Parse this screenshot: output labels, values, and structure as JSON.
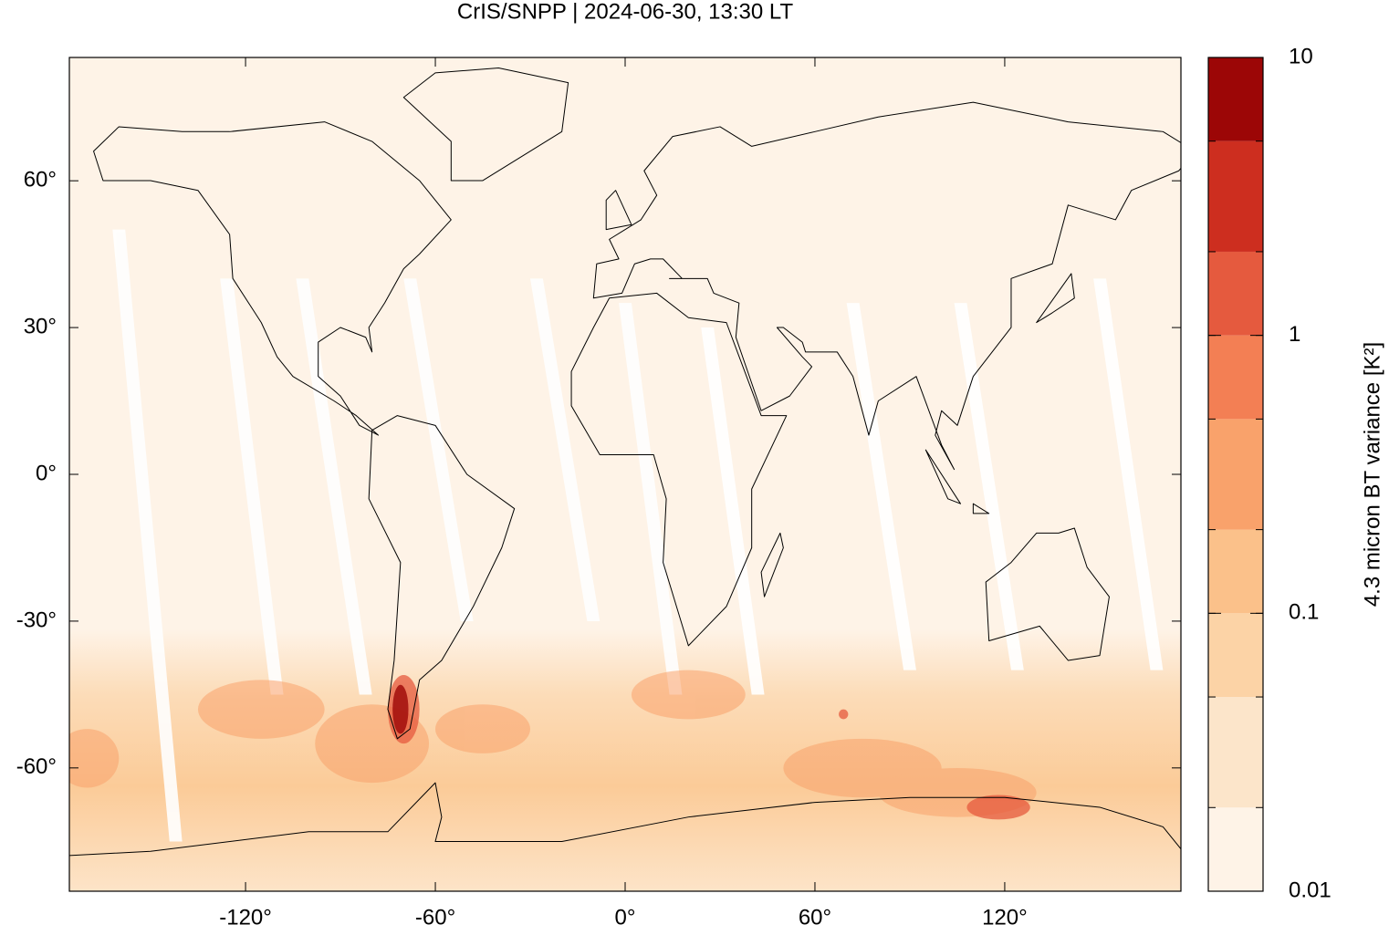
{
  "chart_data": {
    "type": "map",
    "title": "CrIS/SNPP | 2024-06-30, 13:30 LT",
    "xlim": [
      -175.7,
      175.7
    ],
    "ylim": [
      -85.2,
      85.2
    ],
    "xticks": [
      {
        "value": -120,
        "label": "-120°"
      },
      {
        "value": -60,
        "label": "-60°"
      },
      {
        "value": 0,
        "label": "0°"
      },
      {
        "value": 60,
        "label": "60°"
      },
      {
        "value": 120,
        "label": "120°"
      }
    ],
    "yticks": [
      {
        "value": -60,
        "label": "-60°"
      },
      {
        "value": -30,
        "label": "-30°"
      },
      {
        "value": 0,
        "label": "0°"
      },
      {
        "value": 30,
        "label": "30°"
      },
      {
        "value": 60,
        "label": "60°"
      }
    ],
    "colorbar": {
      "label": "4.3 micron BT variance [K²]",
      "scale": "log",
      "lim": [
        0.01,
        10
      ],
      "ticks": [
        0.01,
        0.1,
        1,
        10
      ],
      "levels": [
        0.01,
        0.02,
        0.05,
        0.1,
        0.2,
        0.5,
        1,
        2,
        5,
        10
      ],
      "colors": [
        "#fef3e7",
        "#fce5ca",
        "#fcd3a6",
        "#fbc18a",
        "#f9a26b",
        "#f37f54",
        "#e55a3e",
        "#cd2e1f",
        "#9c0606"
      ]
    }
  }
}
